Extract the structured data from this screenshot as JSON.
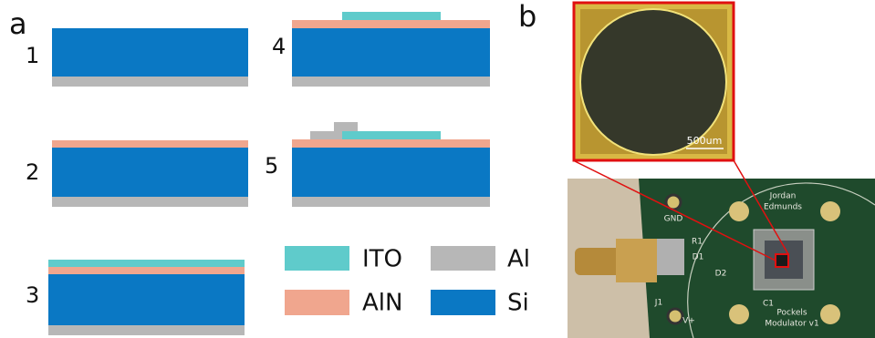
{
  "panel_a": {
    "label": "a",
    "steps": [
      "1",
      "2",
      "3",
      "4",
      "5"
    ],
    "legend": {
      "ito": "ITO",
      "al": "Al",
      "aln": "AlN",
      "si": "Si"
    }
  },
  "panel_b": {
    "label": "b",
    "scale_bar": "500um",
    "pcb_labels": {
      "gnd": "GND",
      "name1": "Jordan",
      "name2": "Edmunds",
      "r1": "R1",
      "d1": "D1",
      "d2": "D2",
      "j1": "J1",
      "vplus": "V+",
      "c1": "C1",
      "title1": "Pockels",
      "title2": "Modulator v1"
    }
  }
}
